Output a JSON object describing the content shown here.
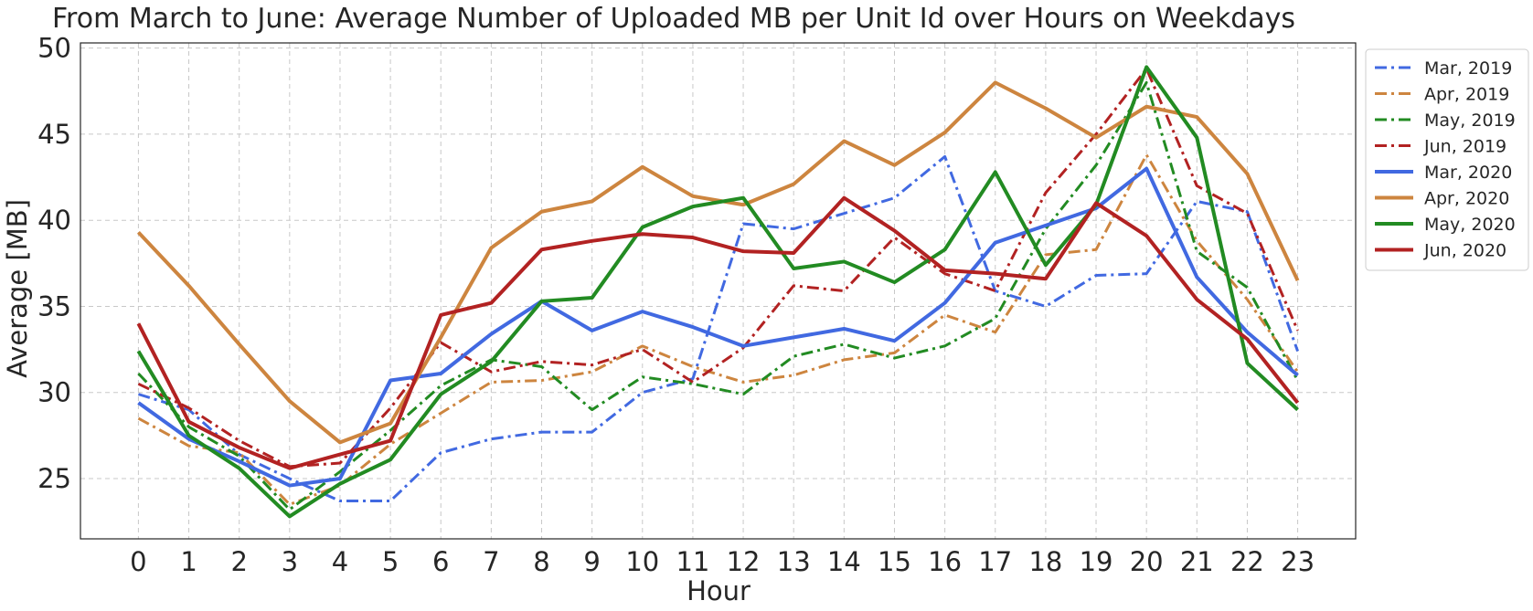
{
  "chart_data": {
    "type": "line",
    "title": "From March to June: Average Number of Uploaded MB per Unit Id over Hours on Weekdays",
    "xlabel": "Hour",
    "ylabel": "Average [MB]",
    "x": [
      0,
      1,
      2,
      3,
      4,
      5,
      6,
      7,
      8,
      9,
      10,
      11,
      12,
      13,
      14,
      15,
      16,
      17,
      18,
      19,
      20,
      21,
      22,
      23
    ],
    "xlim": [
      -1.15,
      24.15
    ],
    "ylim": [
      21.5,
      50.3
    ],
    "yticks": [
      25,
      30,
      35,
      40,
      45,
      50
    ],
    "grid": true,
    "legend": "outside-top-right",
    "series": [
      {
        "name": "Mar, 2019",
        "color": "#4169e1",
        "style": "dashdot",
        "values": [
          29.9,
          29.0,
          26.4,
          25.0,
          23.7,
          23.7,
          26.5,
          27.3,
          27.7,
          27.7,
          30.0,
          30.8,
          39.8,
          39.5,
          40.4,
          41.3,
          43.7,
          35.9,
          35.0,
          36.8,
          36.9,
          41.1,
          40.5,
          32.4
        ]
      },
      {
        "name": "Apr, 2019",
        "color": "#cd853f",
        "style": "dashdot",
        "values": [
          28.5,
          26.9,
          26.5,
          23.5,
          24.6,
          27.0,
          28.8,
          30.6,
          30.7,
          31.2,
          32.7,
          31.5,
          30.6,
          31.0,
          31.9,
          32.3,
          34.5,
          33.5,
          38.0,
          38.3,
          43.8,
          38.8,
          35.4,
          31.2
        ]
      },
      {
        "name": "May, 2019",
        "color": "#228b22",
        "style": "dashdot",
        "values": [
          31.1,
          28.0,
          26.3,
          23.2,
          25.4,
          27.8,
          30.4,
          31.9,
          31.5,
          29.0,
          30.9,
          30.5,
          29.9,
          32.1,
          32.8,
          32.0,
          32.7,
          34.3,
          39.5,
          43.2,
          48.0,
          38.2,
          36.1,
          30.7
        ]
      },
      {
        "name": "Jun, 2019",
        "color": "#b22222",
        "style": "dashdot",
        "values": [
          30.5,
          29.1,
          27.2,
          25.7,
          25.9,
          29.1,
          32.9,
          31.2,
          31.8,
          31.6,
          32.5,
          30.6,
          32.6,
          36.2,
          35.9,
          39.0,
          36.9,
          35.9,
          41.6,
          45.0,
          48.8,
          42.0,
          40.4,
          33.6
        ]
      },
      {
        "name": "Mar, 2020",
        "color": "#4169e1",
        "style": "solid",
        "values": [
          29.4,
          27.3,
          26.0,
          24.6,
          25.0,
          30.7,
          31.1,
          33.4,
          35.3,
          33.6,
          34.7,
          33.8,
          32.7,
          33.2,
          33.7,
          33.0,
          35.2,
          38.7,
          39.7,
          40.7,
          43.0,
          36.7,
          33.5,
          31.0
        ]
      },
      {
        "name": "Apr, 2020",
        "color": "#cd853f",
        "style": "solid",
        "values": [
          39.3,
          36.2,
          32.8,
          29.5,
          27.1,
          28.2,
          33.2,
          38.4,
          40.5,
          41.1,
          43.1,
          41.4,
          40.9,
          42.1,
          44.6,
          43.2,
          45.1,
          48.0,
          46.5,
          44.8,
          46.6,
          46.0,
          42.7,
          36.5
        ]
      },
      {
        "name": "May, 2020",
        "color": "#228b22",
        "style": "solid",
        "values": [
          32.4,
          27.5,
          25.6,
          22.8,
          24.7,
          26.1,
          29.9,
          31.8,
          35.3,
          35.5,
          39.6,
          40.8,
          41.3,
          37.2,
          37.6,
          36.4,
          38.3,
          42.8,
          37.4,
          40.9,
          48.9,
          44.8,
          31.7,
          29.0
        ]
      },
      {
        "name": "Jun, 2020",
        "color": "#b22222",
        "style": "solid",
        "values": [
          34.0,
          28.3,
          26.8,
          25.6,
          26.4,
          27.2,
          34.5,
          35.2,
          38.3,
          38.8,
          39.2,
          39.0,
          38.2,
          38.1,
          41.3,
          39.4,
          37.1,
          36.9,
          36.6,
          41.0,
          39.1,
          35.4,
          33.1,
          29.4
        ]
      }
    ]
  }
}
